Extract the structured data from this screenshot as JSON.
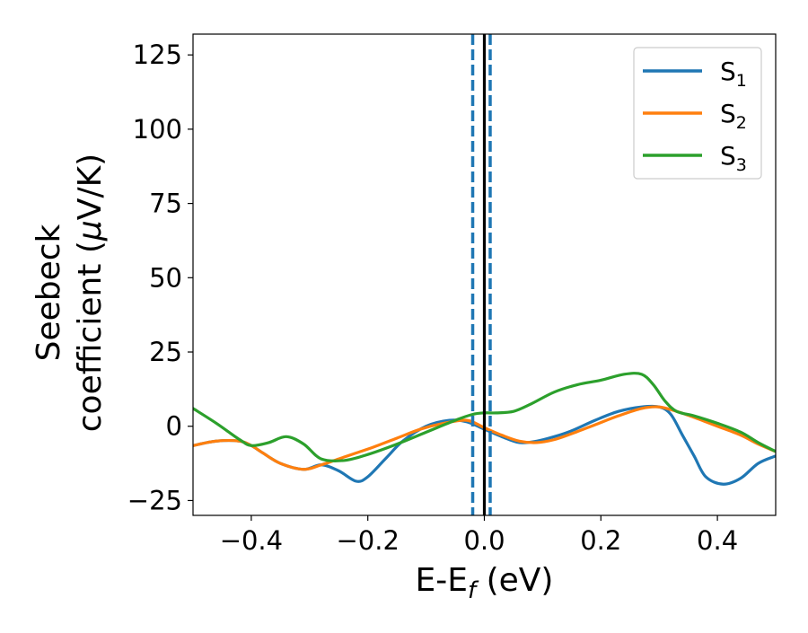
{
  "chart_data": {
    "type": "line",
    "xlabel_main": "E-E",
    "xlabel_sub": "f",
    "xlabel_tail": " (eV)",
    "ylabel_line1": "Seebeck",
    "ylabel_line2": "coefficient  (",
    "ylabel_mu": "μ",
    "ylabel_tail": "V/K)",
    "xlim": [
      -0.5,
      0.5
    ],
    "ylim": [
      -30,
      132
    ],
    "x_ticks": [
      -0.4,
      -0.2,
      0.0,
      0.2,
      0.4
    ],
    "x_tick_labels": [
      "−0.4",
      "−0.2",
      "0.0",
      "0.2",
      "0.4"
    ],
    "y_ticks": [
      -25,
      0,
      25,
      50,
      75,
      100,
      125
    ],
    "y_tick_labels": [
      "−25",
      "0",
      "25",
      "50",
      "75",
      "100",
      "125"
    ],
    "grid": false,
    "legend_position": "top-right",
    "vlines": [
      {
        "x": 0.0,
        "color": "#000000",
        "style": "solid"
      },
      {
        "x": -0.02,
        "color": "#1f77b4",
        "style": "dashed"
      },
      {
        "x": 0.01,
        "color": "#1f77b4",
        "style": "dashed"
      }
    ],
    "series": [
      {
        "name": "S",
        "subscript": "1",
        "color": "#1f77b4",
        "x": [
          -0.5,
          -0.46,
          -0.42,
          -0.4,
          -0.38,
          -0.35,
          -0.31,
          -0.28,
          -0.25,
          -0.22,
          -0.2,
          -0.17,
          -0.14,
          -0.1,
          -0.06,
          -0.03,
          0.0,
          0.03,
          0.06,
          0.09,
          0.12,
          0.15,
          0.19,
          0.23,
          0.27,
          0.3,
          0.32,
          0.34,
          0.36,
          0.38,
          0.41,
          0.44,
          0.47,
          0.5
        ],
        "y": [
          -6.5,
          -5.0,
          -5.0,
          -6.5,
          -9.0,
          -12.5,
          -14.5,
          -13.0,
          -15.0,
          -18.5,
          -17.0,
          -11.0,
          -5.0,
          0.0,
          2.0,
          1.5,
          -1.0,
          -3.5,
          -5.5,
          -5.0,
          -3.5,
          -1.5,
          2.0,
          5.0,
          6.5,
          6.5,
          4.0,
          -3.0,
          -10.0,
          -17.0,
          -19.5,
          -17.5,
          -12.5,
          -10.0
        ]
      },
      {
        "name": "S",
        "subscript": "2",
        "color": "#ff7f0e",
        "x": [
          -0.5,
          -0.46,
          -0.42,
          -0.4,
          -0.38,
          -0.35,
          -0.31,
          -0.28,
          -0.25,
          -0.22,
          -0.19,
          -0.15,
          -0.11,
          -0.07,
          -0.03,
          0.0,
          0.03,
          0.06,
          0.09,
          0.12,
          0.15,
          0.19,
          0.23,
          0.27,
          0.3,
          0.33,
          0.36,
          0.4,
          0.44,
          0.47,
          0.5
        ],
        "y": [
          -6.5,
          -5.0,
          -5.0,
          -6.5,
          -9.0,
          -12.5,
          -14.5,
          -13.0,
          -11.0,
          -9.0,
          -7.0,
          -4.0,
          -1.0,
          1.0,
          2.0,
          -0.5,
          -3.0,
          -5.0,
          -5.5,
          -4.5,
          -2.5,
          0.5,
          3.5,
          6.0,
          6.5,
          5.0,
          3.0,
          0.0,
          -3.0,
          -6.0,
          -8.5
        ]
      },
      {
        "name": "S",
        "subscript": "3",
        "color": "#2ca02c",
        "x": [
          -0.5,
          -0.46,
          -0.42,
          -0.4,
          -0.37,
          -0.34,
          -0.31,
          -0.28,
          -0.24,
          -0.2,
          -0.15,
          -0.1,
          -0.05,
          -0.02,
          0.0,
          0.02,
          0.05,
          0.08,
          0.12,
          0.16,
          0.2,
          0.24,
          0.27,
          0.29,
          0.31,
          0.33,
          0.36,
          0.4,
          0.44,
          0.47,
          0.5
        ],
        "y": [
          6.0,
          1.0,
          -4.5,
          -6.5,
          -5.5,
          -3.5,
          -6.0,
          -11.0,
          -11.5,
          -9.5,
          -6.0,
          -2.0,
          2.0,
          4.0,
          4.5,
          4.5,
          5.0,
          7.5,
          11.5,
          14.0,
          15.5,
          17.5,
          17.5,
          14.0,
          8.5,
          5.0,
          3.5,
          1.0,
          -2.0,
          -5.5,
          -8.5
        ]
      }
    ]
  }
}
